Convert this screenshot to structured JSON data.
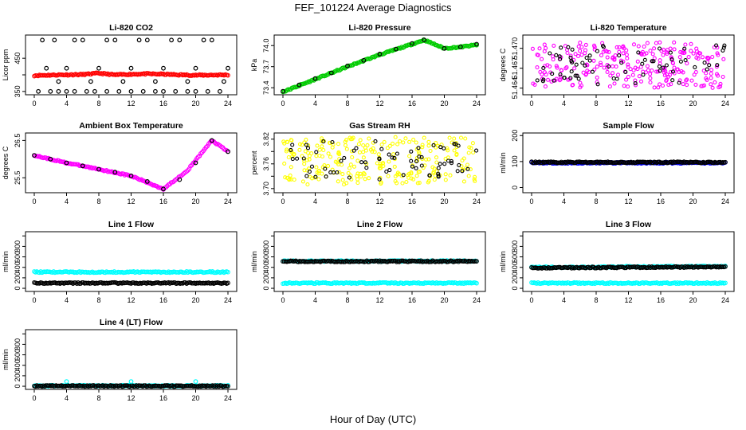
{
  "figure_title": "FEF_101224  Average Diagnostics",
  "xlabel": "Hour of Day (UTC)",
  "chart_data": [
    {
      "type": "scatter",
      "title": "Li-820 CO2",
      "ylabel": "Licor ppm",
      "xlim": [
        0,
        24
      ],
      "ylim": [
        340,
        520
      ],
      "xticks": [
        0,
        4,
        8,
        12,
        16,
        20,
        24
      ],
      "yticks": [
        350,
        400,
        450
      ],
      "ytick_labels": [
        "350",
        "",
        "450"
      ],
      "series": [
        {
          "name": "red",
          "color": "#ff0000",
          "style": "line",
          "x": [
            0,
            3,
            6,
            8,
            10,
            12,
            14,
            16,
            18,
            20,
            24
          ],
          "y": [
            398,
            400,
            401,
            405,
            400,
            402,
            403,
            402,
            400,
            399,
            400
          ]
        },
        {
          "name": "black",
          "color": "#000000",
          "style": "points",
          "x": [
            0.5,
            2,
            3,
            4,
            5,
            6.5,
            7.5,
            9,
            10.5,
            12,
            13.5,
            15,
            16,
            17.5,
            19,
            20,
            21.5,
            23,
            1.5,
            4,
            8,
            12,
            16,
            20,
            24,
            3,
            7,
            11,
            15,
            19,
            23.5,
            2.5,
            6,
            10,
            14,
            18,
            22,
            1,
            5,
            9,
            13,
            17,
            21
          ],
          "y": [
            350,
            350,
            350,
            350,
            350,
            350,
            350,
            350,
            350,
            350,
            350,
            350,
            350,
            350,
            350,
            350,
            350,
            350,
            420,
            420,
            420,
            420,
            420,
            420,
            420,
            380,
            380,
            380,
            380,
            380,
            380,
            505,
            505,
            505,
            505,
            505,
            505,
            505,
            505,
            505,
            505,
            505,
            505
          ]
        }
      ]
    },
    {
      "type": "scatter",
      "title": "Li-820 Pressure",
      "ylabel": "kPa",
      "xlim": [
        0,
        24
      ],
      "ylim": [
        73.3,
        74.15
      ],
      "xticks": [
        0,
        4,
        8,
        12,
        16,
        20,
        24
      ],
      "yticks": [
        73.4,
        73.7,
        74.0
      ],
      "ytick_labels": [
        "73.4",
        "73.7",
        "74.0"
      ],
      "series": [
        {
          "name": "green",
          "color": "#00cc00",
          "style": "line",
          "x": [
            0,
            4,
            8,
            12,
            16,
            17.5,
            20,
            22,
            24
          ],
          "y": [
            73.34,
            73.52,
            73.7,
            73.87,
            74.02,
            74.08,
            73.96,
            73.98,
            74.01
          ]
        },
        {
          "name": "black",
          "color": "#000000",
          "style": "points",
          "x": [
            0,
            2,
            4,
            6,
            8,
            10,
            12,
            14,
            16,
            17.5,
            20,
            22,
            24
          ],
          "y": [
            73.35,
            73.44,
            73.53,
            73.61,
            73.71,
            73.79,
            73.88,
            73.95,
            74.03,
            74.08,
            73.96,
            73.98,
            74.02
          ]
        }
      ]
    },
    {
      "type": "scatter",
      "title": "Li-820 Temperature",
      "ylabel": "degrees C",
      "xlim": [
        0,
        24
      ],
      "ylim": [
        51.463,
        51.472
      ],
      "xticks": [
        0,
        4,
        8,
        12,
        16,
        20,
        24
      ],
      "yticks": [
        51.464,
        51.467,
        51.47
      ],
      "ytick_labels": [
        "51.464",
        "51.467",
        "51.470"
      ],
      "series": [
        {
          "name": "magenta",
          "color": "#ff00ff",
          "style": "noise",
          "x": [
            0,
            24
          ],
          "y": [
            51.464,
            51.471
          ]
        },
        {
          "name": "black",
          "color": "#000000",
          "style": "noise",
          "x": [
            0,
            24
          ],
          "y": [
            51.4645,
            51.4705
          ]
        }
      ]
    },
    {
      "type": "scatter",
      "title": "Ambient Box Temperature",
      "ylabel": "degrees C",
      "xlim": [
        0,
        24
      ],
      "ylim": [
        25.1,
        26.7
      ],
      "xticks": [
        0,
        4,
        8,
        12,
        16,
        20,
        24
      ],
      "yticks": [
        25.5,
        26.5
      ],
      "ytick_labels": [
        "25.5",
        "26.5"
      ],
      "series": [
        {
          "name": "magenta",
          "color": "#ff00ff",
          "style": "line",
          "x": [
            0,
            4,
            8,
            12,
            16,
            19,
            22,
            24
          ],
          "y": [
            26.1,
            25.9,
            25.73,
            25.55,
            25.2,
            25.7,
            26.5,
            26.2
          ]
        },
        {
          "name": "black",
          "color": "#000000",
          "style": "points",
          "x": [
            0,
            2,
            4,
            6,
            8,
            10,
            12,
            14,
            16,
            18,
            20,
            22,
            24
          ],
          "y": [
            26.1,
            26.0,
            25.9,
            25.82,
            25.73,
            25.65,
            25.55,
            25.4,
            25.2,
            25.45,
            25.9,
            26.5,
            26.2
          ]
        }
      ]
    },
    {
      "type": "scatter",
      "title": "Gas Stream RH",
      "ylabel": "percent",
      "xlim": [
        0,
        24
      ],
      "ylim": [
        3.69,
        3.835
      ],
      "xticks": [
        0,
        4,
        8,
        12,
        16,
        20,
        24
      ],
      "yticks": [
        3.7,
        3.73,
        3.76,
        3.79,
        3.82
      ],
      "ytick_labels": [
        "3.70",
        "",
        "3.76",
        "",
        "3.82"
      ],
      "series": [
        {
          "name": "yellow",
          "color": "#ffff00",
          "style": "noise",
          "x": [
            0,
            24
          ],
          "y": [
            3.71,
            3.825
          ]
        },
        {
          "name": "black",
          "color": "#000000",
          "style": "noise",
          "x": [
            0,
            24
          ],
          "y": [
            3.72,
            3.815
          ]
        }
      ]
    },
    {
      "type": "scatter",
      "title": "Sample Flow",
      "ylabel": "ml/min",
      "xlim": [
        0,
        24
      ],
      "ylim": [
        -20,
        210
      ],
      "xticks": [
        0,
        4,
        8,
        12,
        16,
        20,
        24
      ],
      "yticks": [
        0,
        100,
        200
      ],
      "ytick_labels": [
        "0",
        "100",
        "200"
      ],
      "series": [
        {
          "name": "blue",
          "color": "#0000ff",
          "style": "line",
          "x": [
            0,
            24
          ],
          "y": [
            95,
            95
          ]
        },
        {
          "name": "black",
          "color": "#000000",
          "style": "line",
          "x": [
            0,
            24
          ],
          "y": [
            97,
            97
          ]
        }
      ]
    },
    {
      "type": "scatter",
      "title": "Line 1 Flow",
      "ylabel": "ml/min",
      "xlim": [
        0,
        24
      ],
      "ylim": [
        -60,
        1080
      ],
      "xticks": [
        0,
        4,
        8,
        12,
        16,
        20,
        24
      ],
      "yticks": [
        0,
        200,
        400,
        600,
        800,
        1000
      ],
      "ytick_labels": [
        "0",
        "200",
        "400",
        "600",
        "800",
        ""
      ],
      "series": [
        {
          "name": "cyan",
          "color": "#00ffff",
          "style": "line",
          "x": [
            0,
            24
          ],
          "y": [
            310,
            310
          ]
        },
        {
          "name": "black",
          "color": "#000000",
          "style": "line",
          "x": [
            0,
            24
          ],
          "y": [
            100,
            100
          ]
        }
      ]
    },
    {
      "type": "scatter",
      "title": "Line 2 Flow",
      "ylabel": "ml/min",
      "xlim": [
        0,
        24
      ],
      "ylim": [
        -60,
        1080
      ],
      "xticks": [
        0,
        4,
        8,
        12,
        16,
        20,
        24
      ],
      "yticks": [
        0,
        200,
        400,
        600,
        800,
        1000
      ],
      "ytick_labels": [
        "0",
        "200",
        "400",
        "600",
        "800",
        ""
      ],
      "series": [
        {
          "name": "cyan-high",
          "color": "#00ffff",
          "style": "line",
          "x": [
            0,
            24
          ],
          "y": [
            520,
            520
          ]
        },
        {
          "name": "cyan-low",
          "color": "#00ffff",
          "style": "line",
          "x": [
            0,
            24
          ],
          "y": [
            100,
            100
          ]
        },
        {
          "name": "black",
          "color": "#000000",
          "style": "line",
          "x": [
            0,
            24
          ],
          "y": [
            515,
            515
          ]
        }
      ]
    },
    {
      "type": "scatter",
      "title": "Line 3 Flow",
      "ylabel": "ml/min",
      "xlim": [
        0,
        24
      ],
      "ylim": [
        -60,
        1080
      ],
      "xticks": [
        0,
        4,
        8,
        12,
        16,
        20,
        24
      ],
      "yticks": [
        0,
        200,
        400,
        600,
        800,
        1000
      ],
      "ytick_labels": [
        "0",
        "200",
        "400",
        "600",
        "800",
        ""
      ],
      "series": [
        {
          "name": "cyan-high",
          "color": "#00ffff",
          "style": "line",
          "x": [
            0,
            24
          ],
          "y": [
            400,
            420
          ]
        },
        {
          "name": "cyan-low",
          "color": "#00ffff",
          "style": "line",
          "x": [
            0,
            24
          ],
          "y": [
            100,
            100
          ]
        },
        {
          "name": "black",
          "color": "#000000",
          "style": "line",
          "x": [
            0,
            24
          ],
          "y": [
            390,
            410
          ]
        }
      ]
    },
    {
      "type": "scatter",
      "title": "Line 4 (LT) Flow",
      "ylabel": "ml/min",
      "xlim": [
        0,
        24
      ],
      "ylim": [
        -60,
        1080
      ],
      "xticks": [
        0,
        4,
        8,
        12,
        16,
        20,
        24
      ],
      "yticks": [
        0,
        200,
        400,
        600,
        800,
        1000
      ],
      "ytick_labels": [
        "0",
        "200",
        "400",
        "600",
        "800",
        ""
      ],
      "series": [
        {
          "name": "cyan",
          "color": "#00ffff",
          "style": "line",
          "x": [
            0,
            24
          ],
          "y": [
            10,
            10
          ]
        },
        {
          "name": "black",
          "color": "#000000",
          "style": "line",
          "x": [
            0,
            24
          ],
          "y": [
            5,
            5
          ]
        },
        {
          "name": "cyan-spikes",
          "color": "#00ffff",
          "style": "points",
          "x": [
            4,
            12,
            20
          ],
          "y": [
            90,
            90,
            90
          ]
        }
      ]
    }
  ]
}
